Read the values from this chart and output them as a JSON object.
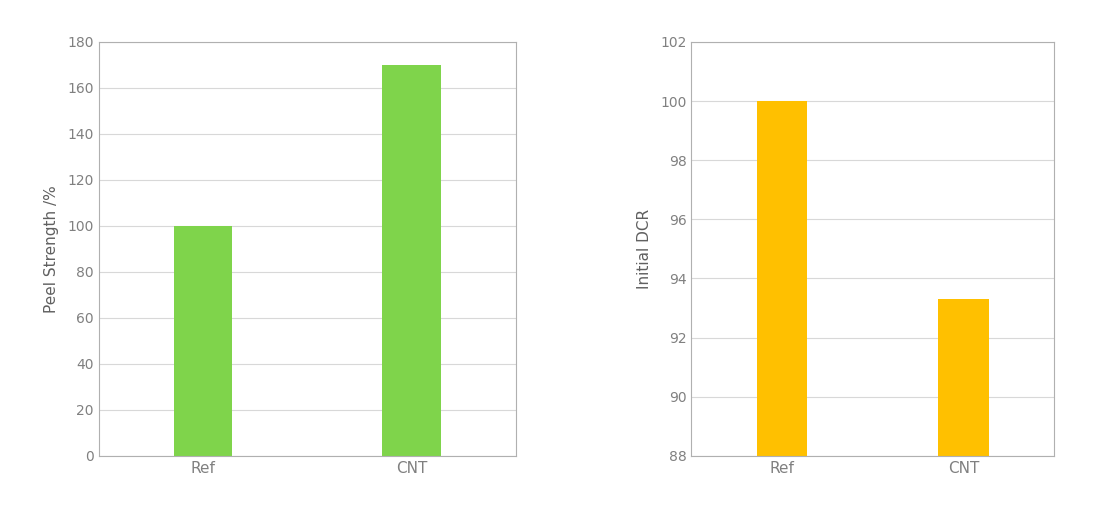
{
  "chart1": {
    "categories": [
      "Ref",
      "CNT"
    ],
    "values": [
      100,
      170
    ],
    "bar_color": "#7FD44B",
    "ylabel": "Peel Strength /%",
    "ylim": [
      0,
      180
    ],
    "yticks": [
      0,
      20,
      40,
      60,
      80,
      100,
      120,
      140,
      160,
      180
    ]
  },
  "chart2": {
    "categories": [
      "Ref",
      "CNT"
    ],
    "values": [
      100,
      93.3
    ],
    "bar_color": "#FFC000",
    "ylabel": "Initial DCR",
    "ylim": [
      88,
      102
    ],
    "yticks": [
      88,
      90,
      92,
      94,
      96,
      98,
      100,
      102
    ]
  },
  "background_color": "#ffffff",
  "spine_color": "#b0b0b0",
  "grid_color": "#d8d8d8",
  "tick_label_color": "#808080",
  "axis_label_color": "#606060",
  "bar_width": 0.28,
  "figure_bg": "#ffffff"
}
